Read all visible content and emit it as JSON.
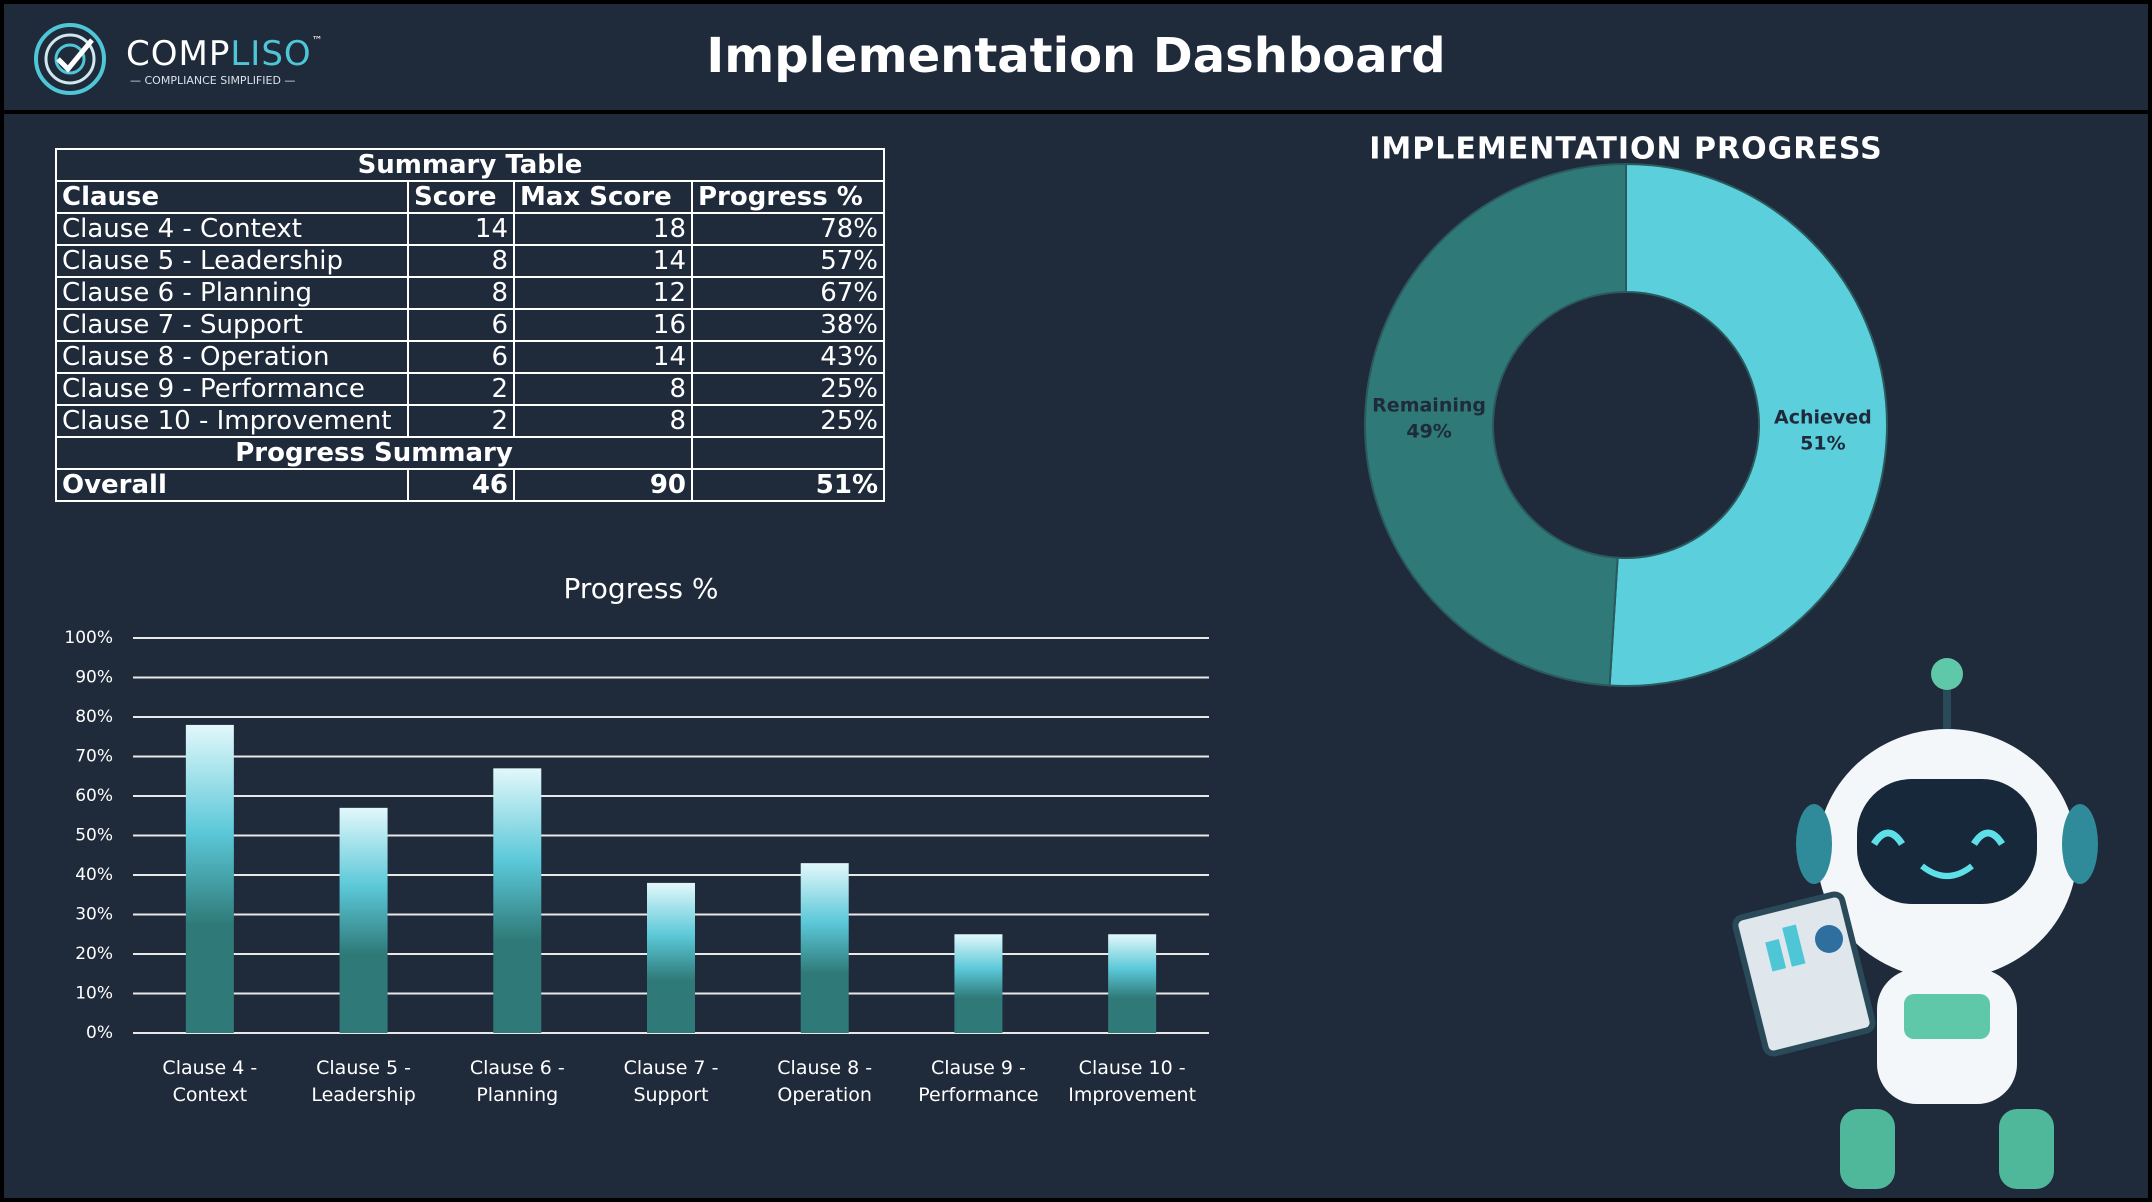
{
  "header": {
    "brand": [
      "COMP",
      "LISO"
    ],
    "trademark": "™",
    "tagline": "— COMPLIANCE SIMPLIFIED —",
    "title": "Implementation Dashboard"
  },
  "table": {
    "title": "Summary Table",
    "columns": [
      "Clause",
      "Score",
      "Max Score",
      "Progress %"
    ],
    "rows": [
      [
        "Clause 4 - Context",
        14,
        18,
        "78%"
      ],
      [
        "Clause 5 - Leadership",
        8,
        14,
        "57%"
      ],
      [
        "Clause 6 - Planning",
        8,
        12,
        "67%"
      ],
      [
        "Clause 7 - Support",
        6,
        16,
        "38%"
      ],
      [
        "Clause 8 - Operation",
        6,
        14,
        "43%"
      ],
      [
        "Clause 9 - Performance",
        2,
        8,
        "25%"
      ],
      [
        "Clause 10 - Improvement",
        2,
        8,
        "25%"
      ]
    ],
    "summary_title": "Progress Summary",
    "summary_row": [
      "Overall",
      46,
      90,
      "51%"
    ]
  },
  "chart_data": [
    {
      "type": "bar",
      "title": "Progress %",
      "categories": [
        "Clause 4 - Context",
        "Clause 5 - Leadership",
        "Clause 6 - Planning",
        "Clause 7 - Support",
        "Clause 8 - Operation",
        "Clause 9 - Performance",
        "Clause 10 - Improvement"
      ],
      "values": [
        78,
        57,
        67,
        38,
        43,
        25,
        25
      ],
      "color": "#5bc8d8",
      "ylim": [
        0,
        100
      ],
      "yticks": [
        {
          "value": 0,
          "label": "0%"
        },
        {
          "value": 10,
          "label": "10%"
        },
        {
          "value": 20,
          "label": "20%"
        },
        {
          "value": 30,
          "label": "30%"
        },
        {
          "value": 40,
          "label": "40%"
        },
        {
          "value": 50,
          "label": "50%"
        },
        {
          "value": 60,
          "label": "60%"
        },
        {
          "value": 70,
          "label": "70%"
        },
        {
          "value": 80,
          "label": "80%"
        },
        {
          "value": 90,
          "label": "90%"
        },
        {
          "value": 100,
          "label": "100%"
        }
      ],
      "grid": true
    },
    {
      "type": "donut",
      "title": "IMPLEMENTATION PROGRESS",
      "categories": [
        "Achieved",
        "Remaining"
      ],
      "values": [
        51,
        49
      ],
      "value_labels": [
        "51%",
        "49%"
      ],
      "colors": [
        "#5ccfdc",
        "#2f7a78"
      ]
    }
  ]
}
